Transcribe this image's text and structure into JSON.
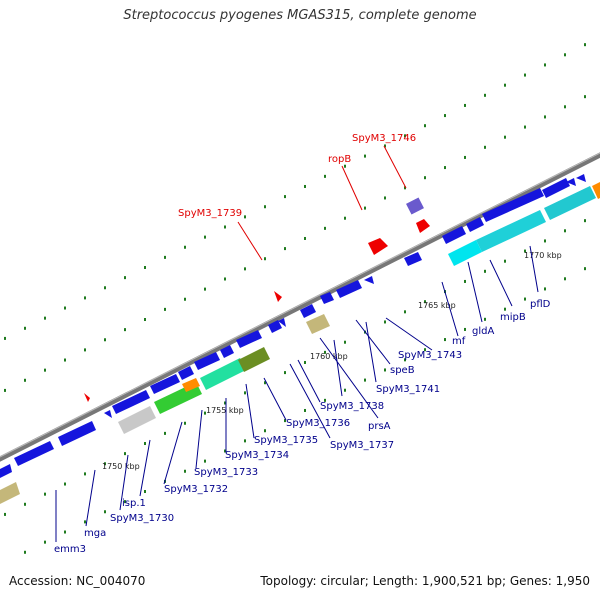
{
  "title": "Streptococcus pyogenes MGAS315, complete genome",
  "footer": {
    "accession": "Accession: NC_004070",
    "summary": "Topology: circular; Length: 1,900,521 bp; Genes: 1,950"
  },
  "colors": {
    "backbone": "#8c8c8c",
    "gene_blue": "#1010dd",
    "gene_red": "#ff0000",
    "label_blue": "#00008b",
    "label_red": "#e00000",
    "gc_dots": "#1e7a1e",
    "cyan": "#00e0ee",
    "green": "#33cc33",
    "olive": "#669933",
    "khaki": "#bdb76b",
    "gray": "#c0c0c0",
    "orange": "#ff8c00",
    "slate": "#6a5acd"
  },
  "position_ticks": [
    "1750 kbp",
    "1755 kbp",
    "1760 kbp",
    "1765 kbp",
    "1770 kbp"
  ],
  "gene_labels_bottom": [
    "emm3",
    "mga",
    "SpyM3_1730",
    "isp.1",
    "SpyM3_1732",
    "SpyM3_1733",
    "SpyM3_1734",
    "SpyM3_1735",
    "SpyM3_1736",
    "SpyM3_1737",
    "SpyM3_1738",
    "prsA",
    "SpyM3_1741",
    "speB",
    "SpyM3_1743",
    "mf",
    "gldA",
    "mipB",
    "pflD"
  ],
  "gene_labels_top": [
    "SpyM3_1739",
    "ropB",
    "SpyM3_1746"
  ]
}
